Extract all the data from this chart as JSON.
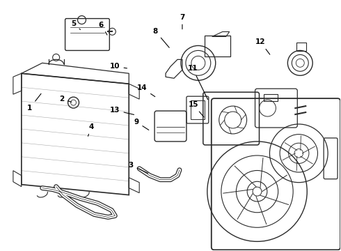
{
  "bg_color": "#ffffff",
  "line_color": "#2a2a2a",
  "fig_width": 4.9,
  "fig_height": 3.6,
  "dpi": 100,
  "label_positions": {
    "1": [
      0.085,
      0.595,
      0.125,
      0.62
    ],
    "2": [
      0.175,
      0.535,
      0.19,
      0.555
    ],
    "3": [
      0.385,
      0.3,
      0.4,
      0.315
    ],
    "4": [
      0.265,
      0.18,
      0.26,
      0.2
    ],
    "5": [
      0.215,
      0.955,
      0.215,
      0.9
    ],
    "6": [
      0.265,
      0.935,
      0.255,
      0.895
    ],
    "7": [
      0.535,
      0.96,
      0.535,
      0.905
    ],
    "8": [
      0.455,
      0.88,
      0.47,
      0.855
    ],
    "9": [
      0.395,
      0.41,
      0.42,
      0.44
    ],
    "10": [
      0.335,
      0.695,
      0.355,
      0.68
    ],
    "11": [
      0.565,
      0.62,
      0.595,
      0.615
    ],
    "12": [
      0.765,
      0.8,
      0.755,
      0.765
    ],
    "13": [
      0.335,
      0.445,
      0.36,
      0.455
    ],
    "14": [
      0.415,
      0.535,
      0.435,
      0.52
    ],
    "15": [
      0.565,
      0.245,
      0.59,
      0.27
    ]
  }
}
